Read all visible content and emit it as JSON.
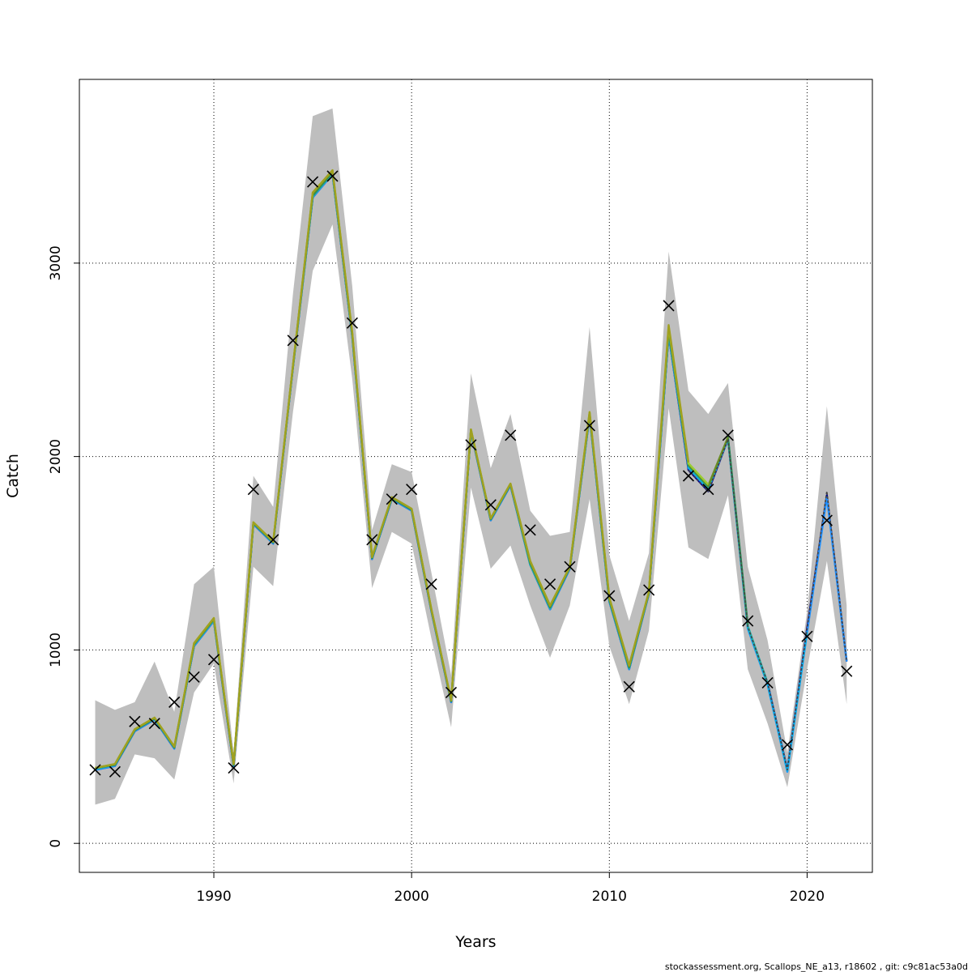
{
  "chart_data": {
    "type": "line",
    "xlabel": "Years",
    "ylabel": "Catch",
    "xlim": [
      1983.2,
      2023.3
    ],
    "ylim": [
      -150,
      3950
    ],
    "xticks": [
      1990,
      2000,
      2010,
      2020
    ],
    "yticks": [
      0,
      1000,
      2000,
      3000
    ],
    "grid": true,
    "footer": "stockassessment.org, Scallops_NE_a13, r18602 , git: c9c81ac53a0d",
    "band": {
      "x": [
        1984,
        1985,
        1986,
        1987,
        1988,
        1989,
        1990,
        1991,
        1992,
        1993,
        1994,
        1995,
        1996,
        1997,
        1998,
        1999,
        2000,
        2001,
        2002,
        2003,
        2004,
        2005,
        2006,
        2007,
        2008,
        2009,
        2010,
        2011,
        2012,
        2013,
        2014,
        2015,
        2016,
        2017,
        2018,
        2019,
        2020,
        2021,
        2022
      ],
      "lower": [
        200,
        230,
        460,
        440,
        330,
        780,
        930,
        310,
        1430,
        1330,
        2230,
        2960,
        3200,
        2400,
        1320,
        1610,
        1550,
        1060,
        600,
        1840,
        1420,
        1540,
        1230,
        960,
        1230,
        1780,
        1020,
        720,
        1100,
        2250,
        1530,
        1470,
        1800,
        900,
        620,
        290,
        900,
        1460,
        720
      ],
      "upper": [
        740,
        690,
        730,
        940,
        680,
        1340,
        1430,
        470,
        1900,
        1740,
        2840,
        3760,
        3800,
        2880,
        1620,
        1960,
        1920,
        1400,
        870,
        2430,
        1940,
        2220,
        1720,
        1590,
        1610,
        2670,
        1490,
        1150,
        1500,
        3060,
        2340,
        2220,
        2380,
        1430,
        1050,
        470,
        1200,
        2260,
        1230
      ]
    },
    "series": [
      {
        "color": "#00008B",
        "values": [
          380,
          400,
          580,
          640,
          490,
          1020,
          1150,
          400,
          1650,
          1550,
          2460,
          3340,
          3460,
          2620,
          1470,
          1780,
          1720,
          1200,
          730,
          2130,
          1670,
          1850,
          1440,
          1210,
          1420,
          2210,
          1250,
          900,
          1290,
          2630,
          1930,
          1820,
          2090,
          1120,
          830,
          380,
          1110,
          1800,
          940
        ]
      },
      {
        "color": "#1E90FF",
        "values": [
          380,
          400,
          580,
          640,
          490,
          1020,
          1150,
          400,
          1650,
          1550,
          2460,
          3340,
          3460,
          2620,
          1470,
          1780,
          1720,
          1200,
          730,
          2130,
          1670,
          1850,
          1440,
          1210,
          1420,
          2210,
          1250,
          900,
          1290,
          2630,
          1940,
          1830,
          2090,
          1110,
          820,
          370,
          1090,
          1790,
          940
        ]
      },
      {
        "color": "#00B0F0",
        "values": [
          385,
          405,
          585,
          645,
          495,
          1025,
          1155,
          405,
          1655,
          1555,
          2465,
          3345,
          3465,
          2625,
          1475,
          1785,
          1725,
          1205,
          735,
          2135,
          1675,
          1855,
          1445,
          1215,
          1425,
          2215,
          1255,
          905,
          1295,
          2640,
          1945,
          1835,
          2095,
          1115,
          825,
          375,
          1095
        ]
      },
      {
        "color": "#20B2AA",
        "values": [
          385,
          405,
          585,
          645,
          495,
          1025,
          1155,
          405,
          1655,
          1555,
          2465,
          3345,
          3465,
          2625,
          1475,
          1785,
          1725,
          1205,
          735,
          2135,
          1675,
          1855,
          1440,
          1215,
          1425,
          2215,
          1255,
          905,
          1295,
          2645,
          1950,
          1840,
          2095,
          1125,
          830
        ]
      },
      {
        "color": "#2E8B57",
        "values": [
          390,
          405,
          585,
          645,
          495,
          1030,
          1160,
          405,
          1655,
          1555,
          2465,
          3350,
          3470,
          2630,
          1475,
          1785,
          1725,
          1205,
          735,
          2135,
          1675,
          1855,
          1450,
          1220,
          1425,
          2220,
          1260,
          910,
          1295,
          2650,
          1955,
          1845,
          2100,
          1130
        ]
      },
      {
        "color": "#6B8E23",
        "values": [
          390,
          410,
          590,
          650,
          500,
          1030,
          1160,
          410,
          1660,
          1560,
          2470,
          3360,
          3475,
          2635,
          1480,
          1790,
          1730,
          1210,
          740,
          2140,
          1680,
          1860,
          1455,
          1225,
          1430,
          2225,
          1265,
          915,
          1300,
          2660,
          1960,
          1850,
          2100
        ]
      },
      {
        "color": "#9ACD32",
        "values": [
          390,
          410,
          590,
          650,
          500,
          1035,
          1165,
          410,
          1660,
          1560,
          2470,
          3365,
          3480,
          2640,
          1480,
          1790,
          1730,
          1210,
          740,
          2140,
          1680,
          1860,
          1460,
          1230,
          1430,
          2230,
          1270,
          920,
          1300,
          2670,
          1965,
          1855
        ]
      },
      {
        "color": "#A0A020",
        "values": [
          390,
          410,
          590,
          650,
          500,
          1035,
          1165,
          410,
          1660,
          1560,
          2470,
          3365,
          3480,
          2640,
          1480,
          1790,
          1730,
          1210,
          740,
          2140,
          1680,
          1860,
          1460,
          1230,
          1430,
          2230,
          1270,
          920,
          1300,
          2680,
          1970
        ]
      },
      {
        "color": "#444444",
        "dashed": true,
        "values": [
          null,
          null,
          null,
          null,
          null,
          null,
          null,
          null,
          null,
          null,
          null,
          null,
          null,
          null,
          null,
          null,
          null,
          null,
          null,
          null,
          null,
          null,
          null,
          null,
          null,
          null,
          null,
          null,
          null,
          null,
          1930,
          1820,
          2090,
          1120,
          830,
          380,
          1110,
          1820,
          940
        ]
      }
    ],
    "observations": {
      "x": [
        1984,
        1985,
        1986,
        1987,
        1988,
        1989,
        1990,
        1991,
        1992,
        1993,
        1994,
        1995,
        1996,
        1997,
        1998,
        1999,
        2000,
        2001,
        2002,
        2003,
        2004,
        2005,
        2006,
        2007,
        2008,
        2009,
        2010,
        2011,
        2012,
        2013,
        2014,
        2015,
        2016,
        2017,
        2018,
        2019,
        2020,
        2021,
        2022
      ],
      "y": [
        380,
        370,
        630,
        620,
        730,
        860,
        950,
        390,
        1830,
        1570,
        2600,
        3420,
        3450,
        2690,
        1570,
        1780,
        1830,
        1340,
        780,
        2060,
        1750,
        2110,
        1620,
        1340,
        1430,
        2160,
        1280,
        810,
        1310,
        2780,
        1900,
        1830,
        2110,
        1150,
        830,
        510,
        1070,
        1670,
        890
      ]
    }
  }
}
